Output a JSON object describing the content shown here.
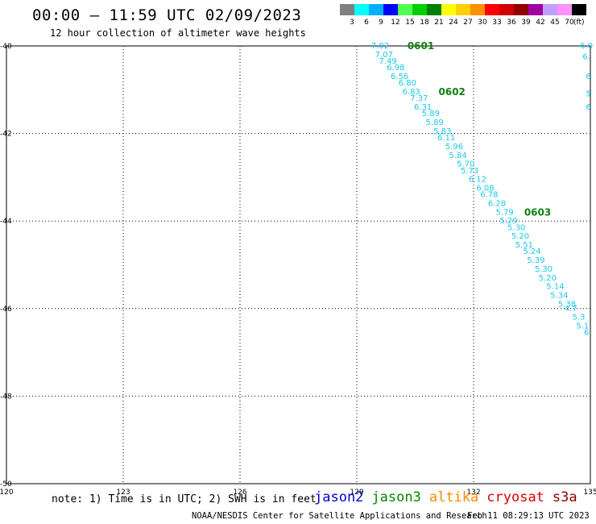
{
  "header": {
    "title": "00:00 – 11:59 UTC 02/09/2023",
    "subtitle": "12 hour collection of altimeter wave heights"
  },
  "legend": {
    "unit": "(ft)",
    "bins": [
      {
        "label": "3",
        "color": "#808080"
      },
      {
        "label": "6",
        "color": "#00ffff"
      },
      {
        "label": "9",
        "color": "#00b0ff"
      },
      {
        "label": "12",
        "color": "#0000ff"
      },
      {
        "label": "15",
        "color": "#50ff50"
      },
      {
        "label": "18",
        "color": "#00d000"
      },
      {
        "label": "21",
        "color": "#008000"
      },
      {
        "label": "24",
        "color": "#ffff00"
      },
      {
        "label": "27",
        "color": "#ffd000"
      },
      {
        "label": "30",
        "color": "#ff9000"
      },
      {
        "label": "33",
        "color": "#ff0000"
      },
      {
        "label": "36",
        "color": "#d00000"
      },
      {
        "label": "39",
        "color": "#900000"
      },
      {
        "label": "42",
        "color": "#a000a0"
      },
      {
        "label": "45",
        "color": "#c0a0ff"
      },
      {
        "label": "70",
        "color": "#ff90ff"
      },
      {
        "label": "",
        "color": "#000000"
      }
    ]
  },
  "footer": {
    "note": "note: 1) Time is in UTC; 2) SWH is in feet",
    "satellites": [
      {
        "name": "jason2",
        "color": "#0000cc"
      },
      {
        "name": "jason3",
        "color": "#008800"
      },
      {
        "name": "altika",
        "color": "#ff8800"
      },
      {
        "name": "cryosat",
        "color": "#dd0000"
      },
      {
        "name": "s3a",
        "color": "#880000"
      }
    ],
    "credit": "NOAA/NESDIS Center for Satellite Applications and Research",
    "timestamp": "Feb 11 08:29:13 UTC 2023"
  },
  "chart_data": {
    "type": "scatter",
    "xlim": [
      120,
      135
    ],
    "ylim": [
      -50,
      -40
    ],
    "x_ticks": [
      "120",
      "123",
      "126",
      "129",
      "132",
      "135"
    ],
    "y_ticks": [
      "-40",
      "-42",
      "-44",
      "-46",
      "-48",
      "-50"
    ],
    "grid": true,
    "points": [
      {
        "x": 129.6,
        "y": -40.0,
        "label": "7.02"
      },
      {
        "x": 129.7,
        "y": -40.2,
        "label": "7.07"
      },
      {
        "x": 129.8,
        "y": -40.35,
        "label": "7.49"
      },
      {
        "x": 130.0,
        "y": -40.5,
        "label": "6.98"
      },
      {
        "x": 130.1,
        "y": -40.7,
        "label": "6.56"
      },
      {
        "x": 130.3,
        "y": -40.85,
        "label": "6.80"
      },
      {
        "x": 130.4,
        "y": -41.05,
        "label": "6.83"
      },
      {
        "x": 130.6,
        "y": -41.2,
        "label": "7.37"
      },
      {
        "x": 130.7,
        "y": -41.4,
        "label": "6.31"
      },
      {
        "x": 130.9,
        "y": -41.55,
        "label": "5.89"
      },
      {
        "x": 131.0,
        "y": -41.75,
        "label": "5.89"
      },
      {
        "x": 131.2,
        "y": -41.95,
        "label": "5.83"
      },
      {
        "x": 131.3,
        "y": -42.1,
        "label": "6.11"
      },
      {
        "x": 131.5,
        "y": -42.3,
        "label": "5.96"
      },
      {
        "x": 131.6,
        "y": -42.5,
        "label": "5.84"
      },
      {
        "x": 131.8,
        "y": -42.7,
        "label": "5.70"
      },
      {
        "x": 131.9,
        "y": -42.85,
        "label": "5.73"
      },
      {
        "x": 132.1,
        "y": -43.05,
        "label": "6.12"
      },
      {
        "x": 132.3,
        "y": -43.25,
        "label": "6.08"
      },
      {
        "x": 132.4,
        "y": -43.4,
        "label": "6.78"
      },
      {
        "x": 132.6,
        "y": -43.6,
        "label": "6.28"
      },
      {
        "x": 132.8,
        "y": -43.8,
        "label": "5.79"
      },
      {
        "x": 132.9,
        "y": -44.0,
        "label": "5.29"
      },
      {
        "x": 133.1,
        "y": -44.15,
        "label": "5.30"
      },
      {
        "x": 133.2,
        "y": -44.35,
        "label": "5.20"
      },
      {
        "x": 133.3,
        "y": -44.55,
        "label": "5.51"
      },
      {
        "x": 133.5,
        "y": -44.7,
        "label": "5.24"
      },
      {
        "x": 133.6,
        "y": -44.9,
        "label": "5.39"
      },
      {
        "x": 133.8,
        "y": -45.1,
        "label": "5.30"
      },
      {
        "x": 133.9,
        "y": -45.3,
        "label": "5.20"
      },
      {
        "x": 134.1,
        "y": -45.5,
        "label": "5.14"
      },
      {
        "x": 134.2,
        "y": -45.7,
        "label": "5.34"
      },
      {
        "x": 134.4,
        "y": -45.9,
        "label": "5.38"
      },
      {
        "x": 134.5,
        "y": -46.0,
        "label": "4.7"
      },
      {
        "x": 134.7,
        "y": -46.2,
        "label": "5.3"
      },
      {
        "x": 134.8,
        "y": -46.4,
        "label": "5.1"
      },
      {
        "x": 134.9,
        "y": -46.55,
        "label": "6"
      },
      {
        "x": 134.9,
        "y": -40.0,
        "label": "6.0"
      },
      {
        "x": 134.9,
        "y": -40.25,
        "label": "6."
      },
      {
        "x": 134.95,
        "y": -40.7,
        "label": "6"
      },
      {
        "x": 134.95,
        "y": -41.1,
        "label": "5"
      },
      {
        "x": 134.95,
        "y": -41.4,
        "label": "6"
      }
    ],
    "time_labels": [
      {
        "x": 130.3,
        "y": -40.0,
        "label": "0601"
      },
      {
        "x": 131.1,
        "y": -41.05,
        "label": "0602"
      },
      {
        "x": 133.3,
        "y": -43.8,
        "label": "0603"
      }
    ]
  }
}
